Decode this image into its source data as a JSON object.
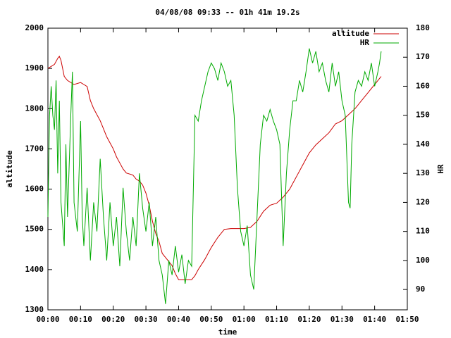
{
  "chart_data": {
    "type": "line",
    "title": "04/08/08 09:33 -- 01h 41m 19.2s",
    "xlabel": "time",
    "ylabel": "altitude",
    "y2label": "HR",
    "legend": "upper right",
    "xlim": [
      0,
      110
    ],
    "xticks": [
      {
        "value": 0,
        "label": "00:00"
      },
      {
        "value": 10,
        "label": "00:10"
      },
      {
        "value": 20,
        "label": "00:20"
      },
      {
        "value": 30,
        "label": "00:30"
      },
      {
        "value": 40,
        "label": "00:40"
      },
      {
        "value": 50,
        "label": "00:50"
      },
      {
        "value": 60,
        "label": "01:00"
      },
      {
        "value": 70,
        "label": "01:10"
      },
      {
        "value": 80,
        "label": "01:20"
      },
      {
        "value": 90,
        "label": "01:30"
      },
      {
        "value": 100,
        "label": "01:40"
      },
      {
        "value": 110,
        "label": "01:50"
      }
    ],
    "ylim": [
      1300,
      2000
    ],
    "yticks": [
      1300,
      1400,
      1500,
      1600,
      1700,
      1800,
      1900,
      2000
    ],
    "y2lim": [
      83,
      180
    ],
    "y2ticks": [
      90,
      100,
      110,
      120,
      130,
      140,
      150,
      160,
      170,
      180
    ],
    "series": [
      {
        "name": "altitude",
        "color": "#cc0000",
        "x": [
          0,
          2,
          3,
          3.5,
          4,
          5,
          6,
          8,
          10,
          11,
          12,
          13,
          14,
          16,
          17,
          18,
          19,
          20,
          21,
          22,
          23,
          24,
          26,
          27,
          28,
          29,
          30,
          31,
          32,
          33,
          34,
          35,
          36,
          38,
          39,
          40,
          42,
          44,
          45,
          46,
          48,
          50,
          52,
          54,
          56,
          58,
          60,
          62,
          64,
          66,
          68,
          70,
          72,
          74,
          76,
          78,
          80,
          82,
          84,
          86,
          88,
          90,
          92,
          94,
          96,
          98,
          100,
          101,
          102
        ],
        "values": [
          1900,
          1910,
          1925,
          1930,
          1920,
          1880,
          1870,
          1860,
          1865,
          1860,
          1855,
          1820,
          1800,
          1770,
          1750,
          1730,
          1715,
          1700,
          1680,
          1665,
          1650,
          1640,
          1635,
          1625,
          1620,
          1610,
          1590,
          1560,
          1520,
          1490,
          1470,
          1440,
          1430,
          1410,
          1390,
          1375,
          1375,
          1375,
          1385,
          1400,
          1425,
          1455,
          1480,
          1500,
          1502,
          1502,
          1502,
          1505,
          1520,
          1545,
          1560,
          1565,
          1580,
          1600,
          1630,
          1660,
          1690,
          1710,
          1725,
          1740,
          1762,
          1770,
          1785,
          1800,
          1820,
          1840,
          1860,
          1870,
          1880
        ]
      },
      {
        "name": "HR",
        "color": "#00aa00",
        "axis": "y2",
        "x": [
          0,
          0.5,
          1,
          1.5,
          2,
          2.5,
          3,
          3.5,
          4,
          5,
          5.5,
          6,
          7,
          7.5,
          8,
          9,
          10,
          10.5,
          11,
          12,
          13,
          14,
          15,
          16,
          17,
          18,
          19,
          20,
          21,
          22,
          23,
          24,
          25,
          26,
          27,
          28,
          29,
          30,
          31,
          32,
          33,
          34,
          35,
          36,
          37,
          38,
          39,
          40,
          41,
          42,
          43,
          44,
          45,
          46,
          47,
          48,
          49,
          50,
          51,
          52,
          53,
          54,
          55,
          56,
          57,
          58,
          59,
          60,
          61,
          62,
          63,
          64,
          65,
          66,
          67,
          68,
          69,
          70,
          71,
          72,
          73,
          74,
          75,
          76,
          77,
          78,
          79,
          80,
          81,
          82,
          83,
          84,
          85,
          86,
          87,
          88,
          89,
          90,
          91,
          92,
          92.5,
          93,
          94,
          95,
          96,
          97,
          98,
          99,
          100,
          101,
          101.5,
          102
        ],
        "values": [
          115,
          150,
          160,
          150,
          145,
          162,
          130,
          155,
          120,
          105,
          140,
          115,
          150,
          165,
          120,
          110,
          148,
          115,
          105,
          125,
          100,
          120,
          110,
          135,
          115,
          100,
          120,
          105,
          115,
          98,
          125,
          110,
          100,
          115,
          105,
          130,
          118,
          110,
          120,
          105,
          115,
          100,
          95,
          85,
          100,
          95,
          105,
          96,
          102,
          92,
          100,
          98,
          150,
          148,
          155,
          160,
          165,
          168,
          166,
          162,
          168,
          165,
          160,
          162,
          150,
          125,
          110,
          105,
          112,
          95,
          90,
          115,
          140,
          150,
          148,
          152,
          148,
          145,
          140,
          105,
          130,
          145,
          155,
          155,
          162,
          158,
          165,
          173,
          168,
          172,
          165,
          168,
          162,
          158,
          168,
          160,
          165,
          155,
          150,
          120,
          118,
          140,
          158,
          162,
          160,
          165,
          162,
          168,
          160,
          165,
          168,
          172
        ]
      }
    ]
  }
}
